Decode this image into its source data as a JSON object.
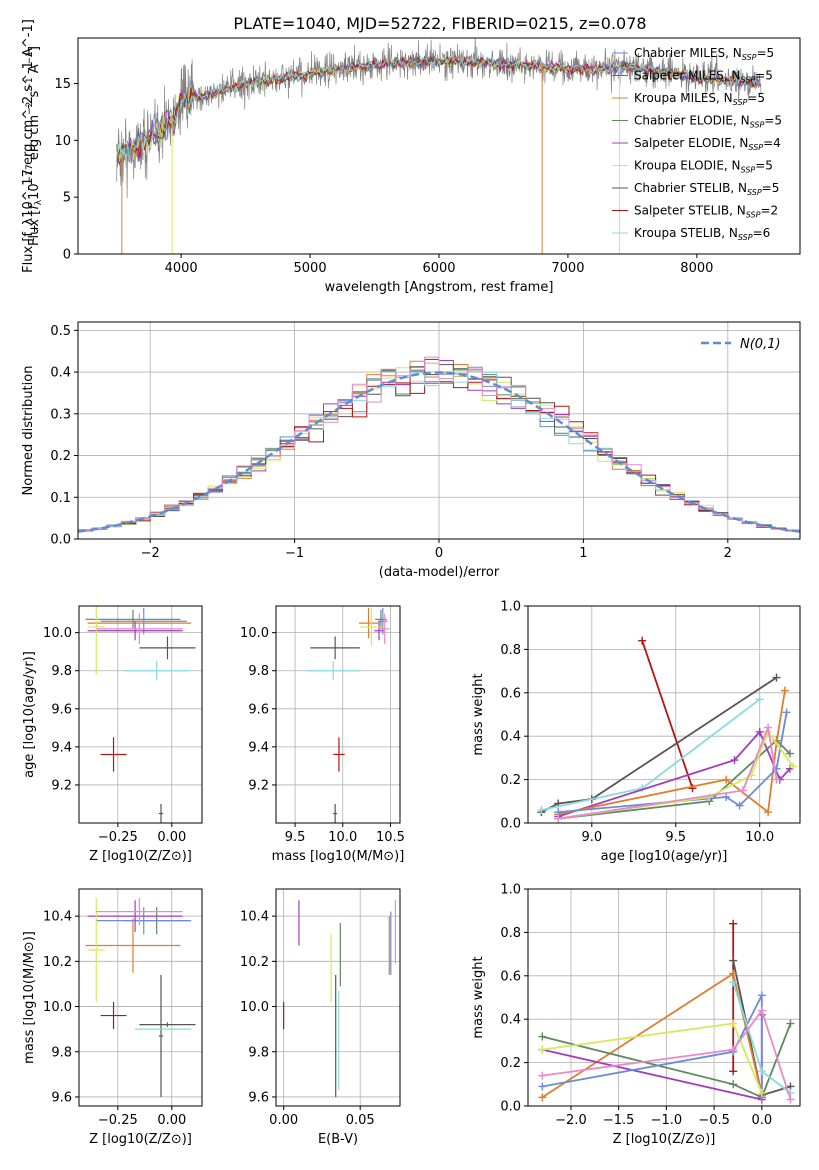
{
  "title": "PLATE=1040, MJD=52722, FIBERID=0215, z=0.078",
  "colors": {
    "chabrier_miles": "#6a8cdb",
    "salpeter_miles": "#a33cbc",
    "kroupa_miles": "#e07e2c",
    "chabrier_elodie": "#5e8a5e",
    "salpeter_elodie": "#a33cbc",
    "kroupa_elodie": "#d6e85c",
    "chabrier_stelib": "#555555",
    "salpeter_stelib": "#b01616",
    "kroupa_stelib": "#86dbe0",
    "pink": "#e88ac8",
    "data": "#808080"
  },
  "chart_data": [
    {
      "id": "spectrum",
      "type": "line",
      "xlabel": "wavelength [Angstrom, rest frame]",
      "ylabel": "Flux [f_λ10^-17 erg cm^-2 s^-1 A^-1]",
      "xlim": [
        3200,
        8800
      ],
      "ylim": [
        0,
        19
      ],
      "xticks": [
        "4000",
        "5000",
        "6000",
        "7000",
        "8000"
      ],
      "yticks": [
        "0",
        "5",
        "10",
        "15"
      ],
      "legend": [
        {
          "label": "Chabrier MILES, N_SSP=5",
          "color": "chabrier_miles"
        },
        {
          "label": "Salpeter MILES, N_SSP=5",
          "color": "salpeter_miles"
        },
        {
          "label": "Kroupa MILES, N_SSP=5",
          "color": "kroupa_miles"
        },
        {
          "label": "Chabrier ELODIE, N_SSP=5",
          "color": "chabrier_elodie"
        },
        {
          "label": "Salpeter ELODIE, N_SSP=4",
          "color": "salpeter_elodie"
        },
        {
          "label": "Kroupa ELODIE, N_SSP=5",
          "color": "kroupa_elodie"
        },
        {
          "label": "Chabrier STELIB, N_SSP=5",
          "color": "chabrier_stelib"
        },
        {
          "label": "Salpeter STELIB, N_SSP=2",
          "color": "salpeter_stelib"
        },
        {
          "label": "Kroupa STELIB, N_SSP=6",
          "color": "kroupa_stelib"
        }
      ],
      "continuum": [
        [
          3500,
          8.5
        ],
        [
          3650,
          9.5
        ],
        [
          3800,
          10.5
        ],
        [
          3950,
          12.0
        ],
        [
          4000,
          13.5
        ],
        [
          4200,
          14.0
        ],
        [
          4500,
          15.0
        ],
        [
          4800,
          15.5
        ],
        [
          5200,
          16.2
        ],
        [
          5600,
          16.8
        ],
        [
          6000,
          17.0
        ],
        [
          6400,
          16.8
        ],
        [
          6800,
          16.5
        ],
        [
          7200,
          16.2
        ],
        [
          7500,
          16.5
        ],
        [
          8000,
          15.5
        ],
        [
          8500,
          15.0
        ]
      ],
      "drops": [
        [
          3540,
          0.0
        ],
        [
          3930,
          0.0
        ],
        [
          6800,
          0.0
        ],
        [
          7400,
          0.0
        ]
      ]
    },
    {
      "id": "residuals",
      "type": "histogram",
      "xlabel": "(data-model)/error",
      "ylabel": "Normed distribution",
      "xlim": [
        -2.5,
        2.5
      ],
      "ylim": [
        0,
        0.52
      ],
      "xticks": [
        "−2",
        "−1",
        "0",
        "1",
        "2"
      ],
      "yticks": [
        "0.0",
        "0.1",
        "0.2",
        "0.3",
        "0.4",
        "0.5"
      ],
      "bin_width": 0.1,
      "legend_label": "N(0,1)",
      "series_colors": [
        "chabrier_miles",
        "salpeter_miles",
        "kroupa_miles",
        "chabrier_elodie",
        "kroupa_elodie",
        "chabrier_stelib",
        "salpeter_stelib",
        "kroupa_stelib",
        "pink"
      ]
    },
    {
      "id": "z-age",
      "type": "errorbar",
      "xlabel": "Z [log10(Z/Z⊙)]",
      "ylabel": "age [log10(age/yr)]",
      "xlim": [
        -0.43,
        0.14
      ],
      "ylim": [
        9.0,
        10.14
      ],
      "xticks": [
        "−0.25",
        "0.00"
      ],
      "yticks": [
        "9.2",
        "9.4",
        "9.6",
        "9.8",
        "10.0"
      ],
      "points": [
        {
          "x": -0.27,
          "y": 9.36,
          "xerr": 0.06,
          "yerr": 0.09,
          "color": "salpeter_stelib"
        },
        {
          "x": -0.05,
          "y": 9.05,
          "xerr": 0.01,
          "yerr": 0.05,
          "color": "chabrier_stelib"
        },
        {
          "x": -0.02,
          "y": 9.92,
          "xerr": 0.13,
          "yerr": 0.06,
          "color": "chabrier_stelib"
        },
        {
          "x": -0.07,
          "y": 9.8,
          "xerr": 0.15,
          "yerr": 0.05,
          "color": "kroupa_stelib"
        },
        {
          "x": -0.18,
          "y": 10.07,
          "xerr": 0.22,
          "yerr": 0.05,
          "color": "chabrier_elodie"
        },
        {
          "x": -0.15,
          "y": 10.05,
          "xerr": 0.24,
          "yerr": 0.04,
          "color": "kroupa_miles"
        },
        {
          "x": -0.13,
          "y": 10.06,
          "xerr": 0.2,
          "yerr": 0.07,
          "color": "chabrier_miles"
        },
        {
          "x": -0.17,
          "y": 10.01,
          "xerr": 0.22,
          "yerr": 0.05,
          "color": "salpeter_miles"
        },
        {
          "x": -0.35,
          "y": 10.03,
          "xerr": 0.04,
          "yerr": 0.25,
          "color": "kroupa_elodie"
        },
        {
          "x": -0.15,
          "y": 10.02,
          "xerr": 0.2,
          "yerr": 0.08,
          "color": "pink"
        }
      ]
    },
    {
      "id": "mass-age",
      "type": "errorbar",
      "xlabel": "mass [log10(M/M⊙)]",
      "ylabel": "",
      "xlim": [
        9.3,
        10.6
      ],
      "ylim": [
        9.0,
        10.14
      ],
      "xticks": [
        "9.5",
        "10.0",
        "10.5"
      ],
      "yticks": [
        "9.2",
        "9.4",
        "9.6",
        "9.8",
        "10.0"
      ],
      "points": [
        {
          "x": 9.96,
          "y": 9.36,
          "xerr": 0.06,
          "yerr": 0.09,
          "color": "salpeter_stelib"
        },
        {
          "x": 9.92,
          "y": 9.05,
          "xerr": 0.02,
          "yerr": 0.05,
          "color": "chabrier_stelib"
        },
        {
          "x": 9.92,
          "y": 9.92,
          "xerr": 0.26,
          "yerr": 0.06,
          "color": "chabrier_stelib"
        },
        {
          "x": 9.9,
          "y": 9.8,
          "xerr": 0.28,
          "yerr": 0.05,
          "color": "kroupa_stelib"
        },
        {
          "x": 10.4,
          "y": 10.07,
          "xerr": 0.06,
          "yerr": 0.05,
          "color": "chabrier_elodie"
        },
        {
          "x": 10.27,
          "y": 10.05,
          "xerr": 0.1,
          "yerr": 0.08,
          "color": "kroupa_miles"
        },
        {
          "x": 10.42,
          "y": 10.06,
          "xerr": 0.05,
          "yerr": 0.07,
          "color": "chabrier_miles"
        },
        {
          "x": 10.38,
          "y": 10.01,
          "xerr": 0.05,
          "yerr": 0.05,
          "color": "salpeter_miles"
        },
        {
          "x": 10.3,
          "y": 10.03,
          "xerr": 0.12,
          "yerr": 0.1,
          "color": "kroupa_elodie"
        },
        {
          "x": 10.44,
          "y": 10.02,
          "xerr": 0.05,
          "yerr": 0.08,
          "color": "pink"
        }
      ]
    },
    {
      "id": "age-weight",
      "type": "line",
      "xlabel": "age [log10(age/yr)]",
      "ylabel": "mass weight",
      "xlim": [
        8.62,
        10.24
      ],
      "ylim": [
        0,
        1.0
      ],
      "xticks": [
        "9.0",
        "9.5",
        "10.0"
      ],
      "yticks": [
        "0.0",
        "0.2",
        "0.4",
        "0.6",
        "0.8",
        "1.0"
      ],
      "series": [
        {
          "color": "salpeter_stelib",
          "points": [
            [
              9.3,
              0.84
            ],
            [
              9.6,
              0.16
            ]
          ]
        },
        {
          "color": "chabrier_stelib",
          "points": [
            [
              8.7,
              0.05
            ],
            [
              8.8,
              0.09
            ],
            [
              9.0,
              0.11
            ],
            [
              10.1,
              0.67
            ]
          ]
        },
        {
          "color": "kroupa_stelib",
          "points": [
            [
              8.7,
              0.06
            ],
            [
              9.3,
              0.16
            ],
            [
              10.0,
              0.57
            ]
          ]
        },
        {
          "color": "chabrier_elodie",
          "points": [
            [
              8.8,
              0.02
            ],
            [
              9.7,
              0.1
            ],
            [
              10.1,
              0.38
            ],
            [
              10.18,
              0.32
            ]
          ]
        },
        {
          "color": "salpeter_miles",
          "points": [
            [
              8.8,
              0.03
            ],
            [
              9.85,
              0.29
            ],
            [
              10.0,
              0.42
            ],
            [
              10.12,
              0.2
            ],
            [
              10.18,
              0.25
            ]
          ]
        },
        {
          "color": "kroupa_miles",
          "points": [
            [
              8.8,
              0.04
            ],
            [
              9.8,
              0.2
            ],
            [
              10.05,
              0.05
            ],
            [
              10.1,
              0.37
            ],
            [
              10.15,
              0.61
            ]
          ]
        },
        {
          "color": "chabrier_miles",
          "points": [
            [
              8.8,
              0.05
            ],
            [
              9.8,
              0.12
            ],
            [
              9.88,
              0.08
            ],
            [
              10.1,
              0.25
            ],
            [
              10.16,
              0.51
            ]
          ]
        },
        {
          "color": "kroupa_elodie",
          "points": [
            [
              8.8,
              0.02
            ],
            [
              9.7,
              0.12
            ],
            [
              9.95,
              0.22
            ],
            [
              10.05,
              0.42
            ],
            [
              10.2,
              0.26
            ]
          ]
        },
        {
          "color": "pink",
          "points": [
            [
              8.8,
              0.02
            ],
            [
              9.9,
              0.15
            ],
            [
              10.05,
              0.44
            ],
            [
              10.1,
              0.2
            ]
          ]
        }
      ]
    },
    {
      "id": "z-mass",
      "type": "errorbar",
      "xlabel": "Z [log10(Z/Z⊙)]",
      "ylabel": "mass [log10(M/M⊙)]",
      "xlim": [
        -0.43,
        0.14
      ],
      "ylim": [
        9.56,
        10.52
      ],
      "xticks": [
        "−0.25",
        "0.00"
      ],
      "yticks": [
        "9.6",
        "9.8",
        "10.0",
        "10.2",
        "10.4"
      ],
      "points": [
        {
          "x": -0.27,
          "y": 9.96,
          "xerr": 0.06,
          "yerr": 0.06,
          "color": "salpeter_stelib"
        },
        {
          "x": -0.05,
          "y": 9.87,
          "xerr": 0.01,
          "yerr": 0.27,
          "color": "chabrier_stelib"
        },
        {
          "x": -0.02,
          "y": 9.92,
          "xerr": 0.13,
          "yerr": 0.01,
          "color": "chabrier_stelib"
        },
        {
          "x": -0.04,
          "y": 9.9,
          "xerr": 0.13,
          "yerr": 0.0,
          "color": "kroupa_stelib"
        },
        {
          "x": -0.07,
          "y": 10.38,
          "xerr": 0.15,
          "yerr": 0.06,
          "color": "chabrier_elodie"
        },
        {
          "x": -0.18,
          "y": 10.27,
          "xerr": 0.22,
          "yerr": 0.12,
          "color": "kroupa_miles"
        },
        {
          "x": -0.13,
          "y": 10.38,
          "xerr": 0.22,
          "yerr": 0.06,
          "color": "chabrier_miles"
        },
        {
          "x": -0.17,
          "y": 10.4,
          "xerr": 0.22,
          "yerr": 0.07,
          "color": "salpeter_miles"
        },
        {
          "x": -0.35,
          "y": 10.25,
          "xerr": 0.04,
          "yerr": 0.23,
          "color": "kroupa_elodie"
        },
        {
          "x": -0.15,
          "y": 10.42,
          "xerr": 0.2,
          "yerr": 0.06,
          "color": "pink"
        }
      ]
    },
    {
      "id": "ebv-mass",
      "type": "errorbar",
      "xlabel": "E(B-V)",
      "ylabel": "",
      "xlim": [
        -0.005,
        0.076
      ],
      "ylim": [
        9.56,
        10.52
      ],
      "xticks": [
        "0.00",
        "0.05"
      ],
      "yticks": [
        "9.6",
        "9.8",
        "10.0",
        "10.2",
        "10.4"
      ],
      "points": [
        {
          "x": 0.0,
          "y": 9.96,
          "xerr": 0.0,
          "yerr": 0.06,
          "color": "salpeter_stelib"
        },
        {
          "x": 0.034,
          "y": 9.87,
          "xerr": 0.0,
          "yerr": 0.27,
          "color": "chabrier_stelib"
        },
        {
          "x": 0.036,
          "y": 9.85,
          "xerr": 0.0,
          "yerr": 0.22,
          "color": "kroupa_stelib"
        },
        {
          "x": 0.037,
          "y": 10.23,
          "xerr": 0.0,
          "yerr": 0.14,
          "color": "chabrier_elodie"
        },
        {
          "x": 0.031,
          "y": 10.17,
          "xerr": 0.0,
          "yerr": 0.15,
          "color": "kroupa_elodie"
        },
        {
          "x": 0.01,
          "y": 10.37,
          "xerr": 0.0,
          "yerr": 0.1,
          "color": "salpeter_miles"
        },
        {
          "x": 0.07,
          "y": 10.28,
          "xerr": 0.0,
          "yerr": 0.14,
          "color": "chabrier_miles"
        },
        {
          "x": 0.069,
          "y": 10.27,
          "xerr": 0.0,
          "yerr": 0.13,
          "color": "kroupa_miles"
        },
        {
          "x": 0.073,
          "y": 10.33,
          "xerr": 0.0,
          "yerr": 0.14,
          "color": "pink"
        }
      ]
    },
    {
      "id": "z-weight",
      "type": "line",
      "xlabel": "Z [log10(Z/Z⊙)]",
      "ylabel": "mass weight",
      "xlim": [
        -2.45,
        0.4
      ],
      "ylim": [
        0,
        1.0
      ],
      "xticks": [
        "−2.0",
        "−1.5",
        "−1.0",
        "−0.5",
        "0.0"
      ],
      "yticks": [
        "0.0",
        "0.2",
        "0.4",
        "0.6",
        "0.8",
        "1.0"
      ],
      "series": [
        {
          "color": "salpeter_stelib",
          "points": [
            [
              -0.3,
              0.84
            ],
            [
              -0.3,
              0.16
            ]
          ]
        },
        {
          "color": "chabrier_stelib",
          "points": [
            [
              -0.3,
              0.67
            ],
            [
              0.0,
              0.05
            ],
            [
              0.3,
              0.09
            ]
          ]
        },
        {
          "color": "kroupa_miles",
          "points": [
            [
              -2.3,
              0.04
            ],
            [
              -0.3,
              0.61
            ],
            [
              0.0,
              0.05
            ]
          ]
        },
        {
          "color": "chabrier_elodie",
          "points": [
            [
              -2.3,
              0.32
            ],
            [
              -0.3,
              0.1
            ],
            [
              0.0,
              0.04
            ],
            [
              0.3,
              0.38
            ]
          ]
        },
        {
          "color": "salpeter_miles",
          "points": [
            [
              -2.3,
              0.26
            ],
            [
              0.0,
              0.03
            ],
            [
              0.0,
              0.42
            ]
          ]
        },
        {
          "color": "chabrier_miles",
          "points": [
            [
              -2.3,
              0.09
            ],
            [
              -0.3,
              0.25
            ],
            [
              0.0,
              0.51
            ],
            [
              0.0,
              0.04
            ]
          ]
        },
        {
          "color": "kroupa_elodie",
          "points": [
            [
              -2.3,
              0.26
            ],
            [
              -0.3,
              0.38
            ],
            [
              0.0,
              0.06
            ]
          ]
        },
        {
          "color": "kroupa_stelib",
          "points": [
            [
              -0.3,
              0.57
            ],
            [
              0.0,
              0.16
            ],
            [
              0.3,
              0.06
            ]
          ]
        },
        {
          "color": "pink",
          "points": [
            [
              -2.3,
              0.14
            ],
            [
              -0.3,
              0.26
            ],
            [
              0.0,
              0.44
            ],
            [
              0.3,
              0.03
            ]
          ]
        }
      ]
    }
  ]
}
